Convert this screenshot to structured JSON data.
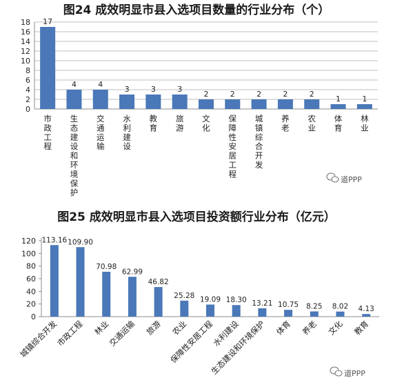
{
  "chart_data": [
    {
      "type": "bar",
      "title": "图24 成效明显市县入选项目数量的行业分布（个）",
      "categories": [
        "市政工程",
        "生态建设和环境保护",
        "交通运输",
        "水利建设",
        "教育",
        "旅游",
        "文化",
        "保障性安居工程",
        "城镇综合开发",
        "养老",
        "农业",
        "体育",
        "林业"
      ],
      "values": [
        17,
        4,
        4,
        3,
        3,
        3,
        2,
        2,
        2,
        2,
        2,
        1,
        1
      ],
      "value_labels": [
        "17",
        "4",
        "4",
        "3",
        "3",
        "3",
        "2",
        "2",
        "2",
        "2",
        "2",
        "1",
        "1"
      ],
      "y_ticks": [
        "0",
        "2",
        "4",
        "6",
        "8",
        "10",
        "12",
        "14",
        "16",
        "18"
      ],
      "ylim": [
        0,
        18
      ],
      "grid": true,
      "color": "#4a78b8"
    },
    {
      "type": "bar",
      "title": "图25 成效明显市县入选项目投资额行业分布（亿元）",
      "categories": [
        "城镇综合开发",
        "市政工程",
        "林业",
        "交通运输",
        "旅游",
        "农业",
        "保障性安居工程",
        "水利建设",
        "生态建设和环境保护",
        "体育",
        "养老",
        "文化",
        "教育"
      ],
      "values": [
        113.16,
        109.9,
        70.98,
        62.99,
        46.82,
        25.28,
        19.09,
        18.3,
        13.21,
        10.75,
        8.25,
        8.02,
        4.13
      ],
      "value_labels": [
        "113.16",
        "109.90",
        "70.98",
        "62.99",
        "46.82",
        "25.28",
        "19.09",
        "18.30",
        "13.21",
        "10.75",
        "8.25",
        "8.02",
        "4.13"
      ],
      "y_ticks": [
        "0",
        "20",
        "40",
        "60",
        "80",
        "100",
        "120"
      ],
      "ylim": [
        0,
        120
      ],
      "grid": false,
      "color": "#4a78b8"
    }
  ],
  "watermark_top": "道PPP",
  "watermark_bottom": "道PPP",
  "watermark_icon": "wechat-icon"
}
